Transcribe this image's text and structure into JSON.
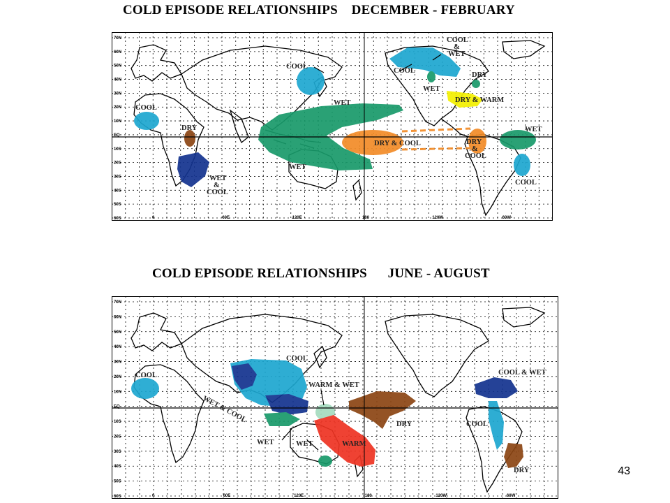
{
  "slide_number": "43",
  "colors": {
    "cool": "#1da7d0",
    "wet": "#189a6a",
    "wet_cool": "#13338f",
    "dry": "#8b4513",
    "dry_cool": "#f28c28",
    "dry_warm": "#f4f000",
    "warm": "#ee3322",
    "warm_wet": "#a6dcc0"
  },
  "panels": [
    {
      "title": "COLD EPISODE RELATIONSHIPS    DECEMBER - FEBRUARY",
      "lat_ticks": [
        "70N",
        "60N",
        "50N",
        "40N",
        "30N",
        "20N",
        "10N",
        "EQ",
        "10S",
        "20S",
        "30S",
        "40S",
        "50S",
        "60S"
      ],
      "lon_ticks": [
        "0",
        "60E",
        "120E",
        "180",
        "120W",
        "60W"
      ],
      "labels": {
        "cool_japan": "COOL",
        "cool_africa": "COOL",
        "dry_africa": "DRY",
        "wet_cool_africa": [
          "WET",
          "&",
          "COOL"
        ],
        "wet_pacific": "WET",
        "wet_indonesia": "WET",
        "dry_cool": "DRY & COOL",
        "dry_cool_peru": [
          "DRY",
          "&",
          "COOL"
        ],
        "cool_wet_nw": [
          "COOL",
          "&",
          "WET"
        ],
        "cool_alaska": "COOL",
        "wet_gulf": "WET",
        "dry_east": "DRY",
        "dry_warm": "DRY & WARM",
        "wet_brazil": "WET",
        "cool_brazil": "COOL"
      }
    },
    {
      "title": "COLD EPISODE RELATIONSHIPS      JUNE - AUGUST",
      "lat_ticks": [
        "70N",
        "60N",
        "50N",
        "40N",
        "30N",
        "20N",
        "10N",
        "EQ",
        "10S",
        "20S",
        "30S",
        "40S",
        "50S",
        "60S"
      ],
      "lon_ticks": [
        "0",
        "60E",
        "120E",
        "180",
        "120W",
        "60W"
      ],
      "labels": {
        "cool_africa": "COOL",
        "cool_asia": "COOL",
        "wet_cool_india": "WET & COOL",
        "warm_wet": "WARM & WET",
        "wet_1": "WET",
        "wet_2": "WET",
        "warm": "WARM",
        "dry_pacific": "DRY",
        "cool_wet_ca": "COOL & WET",
        "cool_sa": "COOL",
        "dry_sa": "DRY"
      }
    }
  ]
}
